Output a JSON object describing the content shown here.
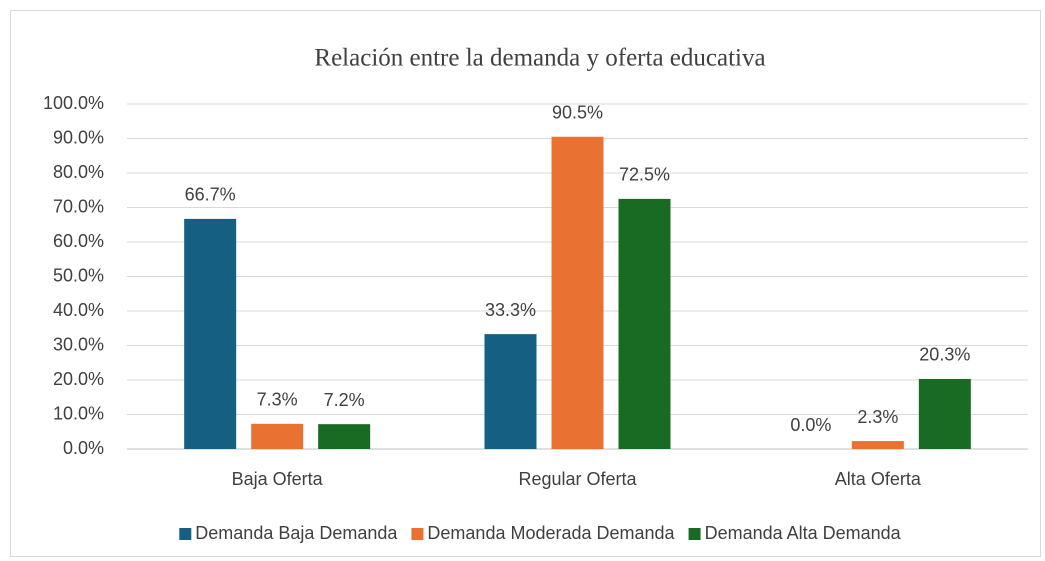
{
  "chart_data": {
    "type": "bar",
    "title": "Relación entre la demanda y oferta educativa",
    "categories": [
      "Baja Oferta",
      "Regular Oferta",
      "Alta Oferta"
    ],
    "series": [
      {
        "name": "Demanda Baja Demanda",
        "color": "#156082",
        "values": [
          66.7,
          33.3,
          0.0
        ],
        "value_labels": [
          "66.7%",
          "33.3%",
          "0.0%"
        ]
      },
      {
        "name": "Demanda Moderada Demanda",
        "color": "#e97132",
        "values": [
          7.3,
          90.5,
          2.3
        ],
        "value_labels": [
          "7.3%",
          "90.5%",
          "2.3%"
        ]
      },
      {
        "name": "Demanda Alta Demanda",
        "color": "#196b24",
        "values": [
          7.2,
          72.5,
          20.3
        ],
        "value_labels": [
          "7.2%",
          "72.5%",
          "20.3%"
        ]
      }
    ],
    "ylim": [
      0,
      100
    ],
    "yticks": [
      {
        "value": 0,
        "label": "0.0%"
      },
      {
        "value": 10,
        "label": "10.0%"
      },
      {
        "value": 20,
        "label": "20.0%"
      },
      {
        "value": 30,
        "label": "30.0%"
      },
      {
        "value": 40,
        "label": "40.0%"
      },
      {
        "value": 50,
        "label": "50.0%"
      },
      {
        "value": 60,
        "label": "60.0%"
      },
      {
        "value": 70,
        "label": "70.0%"
      },
      {
        "value": 80,
        "label": "80.0%"
      },
      {
        "value": 90,
        "label": "90.0%"
      },
      {
        "value": 100,
        "label": "100.0%"
      }
    ],
    "grid": true,
    "legend": "bottom"
  }
}
